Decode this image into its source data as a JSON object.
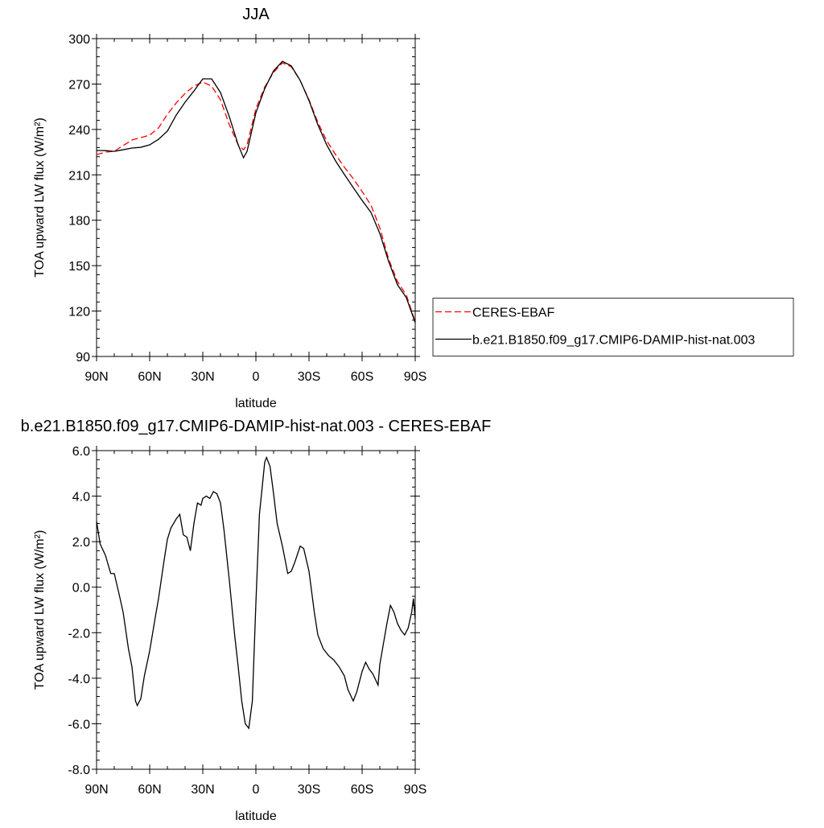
{
  "chart_data": [
    {
      "type": "line",
      "title": "JJA",
      "xlabel": "latitude",
      "ylabel": "TOA upward LW flux (W/m²)",
      "x": [
        90,
        85,
        80,
        75,
        70,
        65,
        60,
        55,
        50,
        45,
        40,
        35,
        30,
        25,
        20,
        15,
        10,
        7,
        5,
        0,
        -5,
        -10,
        -15,
        -20,
        -25,
        -30,
        -35,
        -40,
        -45,
        -50,
        -55,
        -60,
        -65,
        -70,
        -75,
        -80,
        -85,
        -90
      ],
      "series": [
        {
          "name": "CERES-EBAF",
          "color": "#ff0000",
          "line_style": "dashed",
          "values": [
            223.4,
            225,
            225.6,
            229.3,
            233,
            234.6,
            236.2,
            241,
            250,
            257.5,
            263.8,
            268.6,
            271.3,
            268.6,
            259.6,
            243.1,
            229.8,
            226.6,
            229.8,
            253.7,
            268.1,
            277.7,
            284,
            281.4,
            272.4,
            259.6,
            244.7,
            232.5,
            223.4,
            215,
            207.5,
            199,
            190,
            175.1,
            154.3,
            139.5,
            130.5,
            112.9
          ]
        },
        {
          "name": "b.e21.B1850.f09_g17.CMIP6-DAMIP-hist-nat.003",
          "color": "#000000",
          "line_style": "solid",
          "values": [
            226.1,
            226,
            225.5,
            226.6,
            227.7,
            228.2,
            229.8,
            233.5,
            238.9,
            249.5,
            258,
            265.4,
            273.4,
            273.4,
            264.4,
            248.4,
            229.8,
            221.3,
            225.5,
            251,
            267,
            278.7,
            285,
            282,
            272.4,
            259.1,
            243.1,
            229.8,
            219.2,
            210.2,
            201.6,
            193.1,
            185.2,
            171.3,
            152.7,
            137.3,
            128.8,
            112.3
          ]
        }
      ],
      "xlim": [
        90,
        -90
      ],
      "xticks": [
        {
          "value": 90,
          "label": "90N"
        },
        {
          "value": 60,
          "label": "60N"
        },
        {
          "value": 30,
          "label": "30N"
        },
        0,
        {
          "value": -30,
          "label": "30S"
        },
        {
          "value": -60,
          "label": "60S"
        },
        {
          "value": -90,
          "label": "90S"
        }
      ],
      "ylim": [
        90,
        300
      ],
      "yticks": [
        90,
        120,
        150,
        180,
        210,
        240,
        270,
        300
      ],
      "legend": "right"
    },
    {
      "type": "line",
      "title": "b.e21.B1850.f09_g17.CMIP6-DAMIP-hist-nat.003 - CERES-EBAF",
      "xlabel": "latitude",
      "ylabel": "TOA upward LW flux (W/m²)",
      "x": [
        90,
        88,
        85,
        82,
        80,
        77,
        75,
        72,
        70,
        68,
        67,
        65,
        63,
        60,
        57,
        55,
        52,
        50,
        48,
        45,
        43,
        41,
        39,
        37,
        35,
        33,
        31,
        30,
        28,
        26,
        24,
        22,
        20,
        18,
        15,
        12,
        10,
        8,
        6,
        4,
        2,
        0,
        -2,
        -5,
        -6,
        -8,
        -10,
        -12,
        -15,
        -18,
        -20,
        -22,
        -25,
        -27,
        -30,
        -33,
        -35,
        -38,
        -41,
        -44,
        -47,
        -50,
        -52,
        -55,
        -57,
        -60,
        -62,
        -64,
        -66,
        -69,
        -70,
        -72,
        -74,
        -76,
        -78,
        -80,
        -82,
        -84,
        -86,
        -88,
        -89,
        -90
      ],
      "values": [
        2.9,
        1.9,
        1.4,
        0.6,
        0.6,
        -0.4,
        -1.1,
        -2.7,
        -3.5,
        -5.0,
        -5.2,
        -4.9,
        -3.9,
        -2.8,
        -1.4,
        -0.5,
        1.1,
        2.1,
        2.6,
        3.0,
        3.2,
        2.3,
        2.2,
        1.6,
        2.8,
        3.7,
        3.6,
        3.9,
        4.0,
        3.9,
        4.2,
        4.1,
        3.7,
        2.5,
        0.3,
        -2.1,
        -3.5,
        -5.0,
        -6.0,
        -6.2,
        -5.0,
        -0.7,
        3.2,
        5.5,
        5.7,
        5.3,
        4.1,
        2.8,
        1.8,
        0.6,
        0.7,
        1.1,
        1.8,
        1.7,
        0.7,
        -1.1,
        -2.1,
        -2.7,
        -3.0,
        -3.2,
        -3.5,
        -3.9,
        -4.5,
        -5.0,
        -4.6,
        -3.7,
        -3.3,
        -3.6,
        -3.8,
        -4.3,
        -3.4,
        -2.5,
        -1.6,
        -0.8,
        -1.1,
        -1.6,
        -1.9,
        -2.1,
        -1.8,
        -1.1,
        -0.5,
        -1.4
      ],
      "color": "#000000",
      "xlim": [
        90,
        -90
      ],
      "xticks": [
        {
          "value": 90,
          "label": "90N"
        },
        {
          "value": 60,
          "label": "60N"
        },
        {
          "value": 30,
          "label": "30N"
        },
        0,
        {
          "value": -30,
          "label": "30S"
        },
        {
          "value": -60,
          "label": "60S"
        },
        {
          "value": -90,
          "label": "90S"
        }
      ],
      "ylim": [
        -8,
        6
      ],
      "yticks": [
        {
          "value": -8,
          "label": "-8.0"
        },
        {
          "value": -6,
          "label": "-6.0"
        },
        {
          "value": -4,
          "label": "-4.0"
        },
        {
          "value": -2,
          "label": "-2.0"
        },
        {
          "value": 0,
          "label": "0.0"
        },
        {
          "value": 2,
          "label": "2.0"
        },
        {
          "value": 4,
          "label": "4.0"
        },
        {
          "value": 6,
          "label": "6.0"
        }
      ]
    }
  ]
}
